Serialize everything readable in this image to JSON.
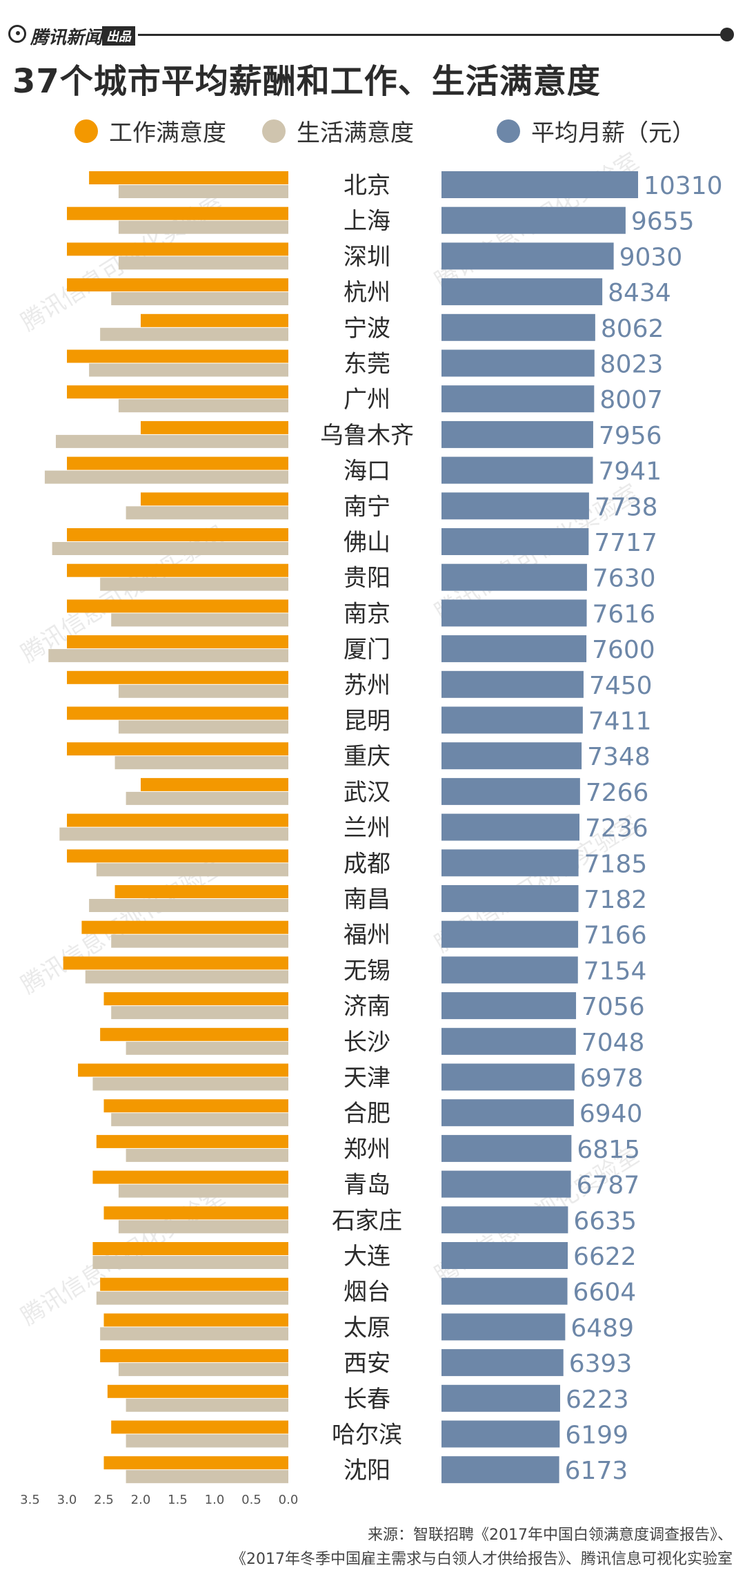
{
  "header": {
    "brand": "腾讯新闻",
    "brand_tag": "出品",
    "title": "37个城市平均薪酬和工作、生活满意度"
  },
  "legend": [
    {
      "label": "工作满意度",
      "color": "#F39800"
    },
    {
      "label": "生活满意度",
      "color": "#CFC4AE"
    },
    {
      "label": "平均月薪（元）",
      "color": "#6D87A8"
    }
  ],
  "chart_data": {
    "type": "bar",
    "categories": [
      "北京",
      "上海",
      "深圳",
      "杭州",
      "宁波",
      "东莞",
      "广州",
      "乌鲁木齐",
      "海口",
      "南宁",
      "佛山",
      "贵阳",
      "南京",
      "厦门",
      "苏州",
      "昆明",
      "重庆",
      "武汉",
      "兰州",
      "成都",
      "南昌",
      "福州",
      "无锡",
      "济南",
      "长沙",
      "天津",
      "合肥",
      "郑州",
      "青岛",
      "石家庄",
      "大连",
      "烟台",
      "太原",
      "西安",
      "长春",
      "哈尔滨",
      "沈阳"
    ],
    "series": [
      {
        "name": "工作满意度",
        "values": [
          2.7,
          3.0,
          3.0,
          3.0,
          2.0,
          3.0,
          3.0,
          2.0,
          3.0,
          2.0,
          3.0,
          3.0,
          3.0,
          3.0,
          3.0,
          3.0,
          3.0,
          2.0,
          3.0,
          3.0,
          2.35,
          2.8,
          3.05,
          2.5,
          2.55,
          2.85,
          2.5,
          2.6,
          2.65,
          2.5,
          2.65,
          2.55,
          2.5,
          2.55,
          2.45,
          2.4,
          2.5
        ]
      },
      {
        "name": "生活满意度",
        "values": [
          2.3,
          2.3,
          2.3,
          2.4,
          2.55,
          2.7,
          2.3,
          3.15,
          3.3,
          2.2,
          3.2,
          2.55,
          2.4,
          3.25,
          2.3,
          2.3,
          2.35,
          2.2,
          3.1,
          2.6,
          2.7,
          2.4,
          2.75,
          2.4,
          2.2,
          2.65,
          2.4,
          2.2,
          2.3,
          2.3,
          2.65,
          2.6,
          2.55,
          2.3,
          2.2,
          2.2,
          2.2
        ]
      },
      {
        "name": "平均月薪（元）",
        "values": [
          10310,
          9655,
          9030,
          8434,
          8062,
          8023,
          8007,
          7956,
          7941,
          7738,
          7717,
          7630,
          7616,
          7600,
          7450,
          7411,
          7348,
          7266,
          7236,
          7185,
          7182,
          7166,
          7154,
          7056,
          7048,
          6978,
          6940,
          6815,
          6787,
          6635,
          6622,
          6604,
          6489,
          6393,
          6223,
          6199,
          6173
        ]
      }
    ],
    "x_axis_left": {
      "ticks": [
        "3.5",
        "3.0",
        "2.5",
        "2.0",
        "1.5",
        "1.0",
        "0.5",
        "0.0"
      ],
      "range": [
        0,
        3.5
      ]
    },
    "salary_axis": {
      "range": [
        0,
        10310
      ]
    }
  },
  "watermark": "腾讯信息可视化实验室",
  "source": {
    "line1": "来源：智联招聘《2017年中国白领满意度调查报告》、",
    "line2": "《2017年冬季中国雇主需求与白领人才供给报告》、腾讯信息可视化实验室"
  }
}
